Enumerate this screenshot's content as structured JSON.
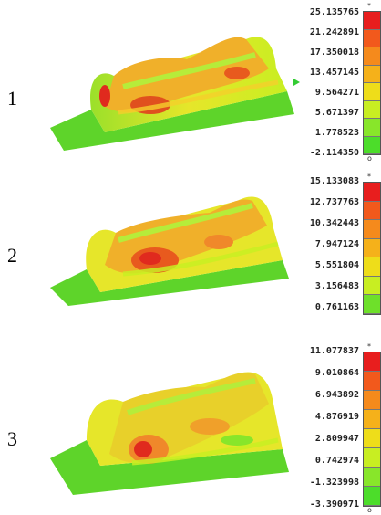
{
  "panels": [
    {
      "label": "1",
      "legend": [
        "25.135765",
        "21.242891",
        "17.350018",
        "13.457145",
        "9.564271",
        "5.671397",
        "1.778523",
        "-2.114350"
      ],
      "colorbar_colors": [
        "#e81e1e",
        "#f2591c",
        "#f58a1c",
        "#f5b11a",
        "#eedd1a",
        "#c8ee22",
        "#88e62a",
        "#4cdd2a"
      ],
      "marks": [
        "*",
        "o"
      ]
    },
    {
      "label": "2",
      "legend": [
        "15.133083",
        "12.737763",
        "10.342443",
        "7.947124",
        "5.551804",
        "3.156483",
        "0.761163"
      ],
      "colorbar_colors": [
        "#e81e1e",
        "#f2591c",
        "#f58a1c",
        "#f5b11a",
        "#eedd1a",
        "#c8ee22",
        "#6ee02a"
      ],
      "marks": [
        "*"
      ]
    },
    {
      "label": "3",
      "legend": [
        "11.077837",
        "9.010864",
        "6.943892",
        "4.876919",
        "2.809947",
        "0.742974",
        "-1.323998",
        "-3.390971"
      ],
      "colorbar_colors": [
        "#e81e1e",
        "#f2591c",
        "#f58a1c",
        "#f5b11a",
        "#eedd1a",
        "#c8ee22",
        "#88e62a",
        "#4cdd2a"
      ],
      "marks": [
        "*",
        "o"
      ]
    }
  ],
  "colors": {
    "surface_green": "#5ed42a",
    "surface_yellow": "#e6e62a",
    "surface_orange": "#f0a02a",
    "surface_red": "#e02a1e",
    "surface_light": "#b6ec3a"
  }
}
